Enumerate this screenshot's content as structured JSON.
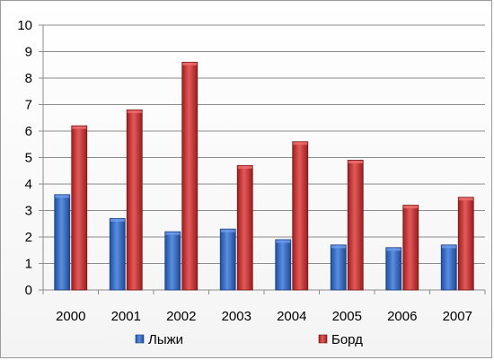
{
  "chart_data": {
    "type": "bar",
    "categories": [
      "2000",
      "2001",
      "2002",
      "2003",
      "2004",
      "2005",
      "2006",
      "2007"
    ],
    "series": [
      {
        "name": "Лыжи",
        "values": [
          3.6,
          2.7,
          2.2,
          2.3,
          1.9,
          1.7,
          1.6,
          1.7
        ],
        "color": "#3a6fc4"
      },
      {
        "name": "Борд",
        "values": [
          6.2,
          6.8,
          8.6,
          4.7,
          5.6,
          4.9,
          3.2,
          3.5
        ],
        "color": "#c83a3a"
      }
    ],
    "yticks": [
      "0",
      "1",
      "2",
      "3",
      "4",
      "5",
      "6",
      "7",
      "8",
      "9",
      "10"
    ],
    "ylim": [
      0,
      10
    ],
    "grid": true,
    "legend_position": "bottom"
  }
}
